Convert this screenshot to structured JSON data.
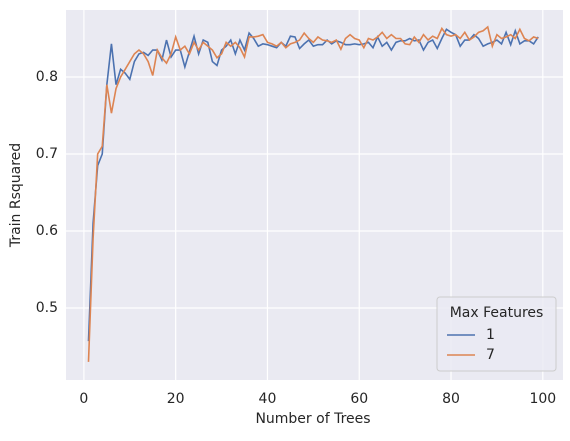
{
  "chart_data": {
    "type": "line",
    "xlabel": "Number of Trees",
    "ylabel": "Train Rsquared",
    "x": [
      1,
      2,
      3,
      4,
      5,
      6,
      7,
      8,
      9,
      10,
      11,
      12,
      13,
      14,
      15,
      16,
      17,
      18,
      19,
      20,
      21,
      22,
      23,
      24,
      25,
      26,
      27,
      28,
      29,
      30,
      31,
      32,
      33,
      34,
      35,
      36,
      37,
      38,
      39,
      40,
      41,
      42,
      43,
      44,
      45,
      46,
      47,
      48,
      49,
      50,
      51,
      52,
      53,
      54,
      55,
      56,
      57,
      58,
      59,
      60,
      61,
      62,
      63,
      64,
      65,
      66,
      67,
      68,
      69,
      70,
      71,
      72,
      73,
      74,
      75,
      76,
      77,
      78,
      79,
      80,
      81,
      82,
      83,
      84,
      85,
      86,
      87,
      88,
      89,
      90,
      91,
      92,
      93,
      94,
      95,
      96,
      97,
      98,
      99
    ],
    "series": [
      {
        "name": "1",
        "color": "#4c72b0",
        "values": [
          0.457,
          0.61,
          0.685,
          0.7,
          0.79,
          0.843,
          0.79,
          0.81,
          0.805,
          0.797,
          0.82,
          0.83,
          0.832,
          0.828,
          0.835,
          0.835,
          0.822,
          0.848,
          0.826,
          0.835,
          0.835,
          0.813,
          0.833,
          0.853,
          0.83,
          0.848,
          0.845,
          0.82,
          0.815,
          0.835,
          0.84,
          0.848,
          0.83,
          0.848,
          0.835,
          0.857,
          0.85,
          0.84,
          0.843,
          0.842,
          0.84,
          0.838,
          0.845,
          0.84,
          0.853,
          0.852,
          0.837,
          0.843,
          0.848,
          0.84,
          0.842,
          0.842,
          0.848,
          0.843,
          0.847,
          0.845,
          0.842,
          0.842,
          0.843,
          0.842,
          0.843,
          0.845,
          0.838,
          0.852,
          0.84,
          0.845,
          0.835,
          0.845,
          0.847,
          0.847,
          0.85,
          0.847,
          0.848,
          0.835,
          0.845,
          0.848,
          0.837,
          0.85,
          0.862,
          0.858,
          0.855,
          0.84,
          0.848,
          0.848,
          0.855,
          0.85,
          0.84,
          0.843,
          0.845,
          0.848,
          0.843,
          0.858,
          0.842,
          0.86,
          0.843,
          0.847,
          0.847,
          0.843,
          0.852
        ]
      },
      {
        "name": "7",
        "color": "#dd8452",
        "values": [
          0.43,
          0.59,
          0.7,
          0.71,
          0.79,
          0.753,
          0.785,
          0.8,
          0.81,
          0.82,
          0.83,
          0.835,
          0.83,
          0.82,
          0.802,
          0.835,
          0.825,
          0.818,
          0.83,
          0.852,
          0.835,
          0.84,
          0.83,
          0.845,
          0.835,
          0.845,
          0.84,
          0.835,
          0.825,
          0.83,
          0.845,
          0.84,
          0.845,
          0.838,
          0.826,
          0.852,
          0.852,
          0.853,
          0.855,
          0.845,
          0.843,
          0.84,
          0.845,
          0.838,
          0.843,
          0.845,
          0.848,
          0.857,
          0.85,
          0.845,
          0.852,
          0.848,
          0.847,
          0.845,
          0.848,
          0.836,
          0.85,
          0.855,
          0.85,
          0.848,
          0.838,
          0.85,
          0.848,
          0.852,
          0.858,
          0.85,
          0.855,
          0.85,
          0.85,
          0.843,
          0.842,
          0.852,
          0.845,
          0.855,
          0.848,
          0.853,
          0.85,
          0.863,
          0.855,
          0.853,
          0.855,
          0.85,
          0.858,
          0.848,
          0.852,
          0.858,
          0.86,
          0.865,
          0.84,
          0.855,
          0.85,
          0.852,
          0.855,
          0.85,
          0.862,
          0.85,
          0.847,
          0.852,
          0.85
        ]
      }
    ],
    "xlim": [
      -3.9,
      104.4
    ],
    "ylim": [
      0.4065,
      0.887
    ],
    "xticks": [
      0,
      20,
      40,
      60,
      80,
      100
    ],
    "yticks": [
      0.5,
      0.6,
      0.7,
      0.8
    ],
    "grid": true,
    "legend_title": "Max Features",
    "legend": "lower right"
  }
}
